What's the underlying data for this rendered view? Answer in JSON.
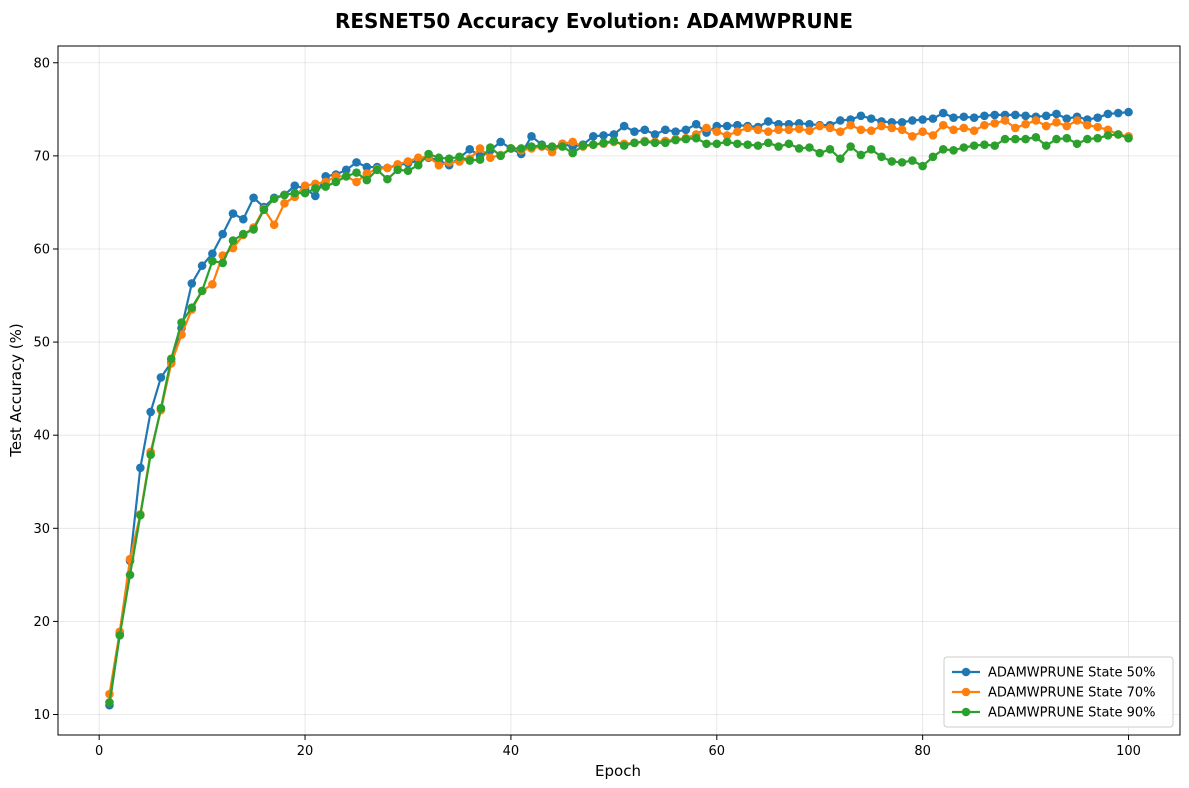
{
  "chart_data": {
    "type": "line",
    "title": "RESNET50 Accuracy Evolution: ADAMWPRUNE",
    "xlabel": "Epoch",
    "ylabel": "Test Accuracy (%)",
    "xlim": [
      -4,
      105
    ],
    "ylim": [
      7.8,
      81.8
    ],
    "xticks": [
      0,
      20,
      40,
      60,
      80,
      100
    ],
    "yticks": [
      10,
      20,
      30,
      40,
      50,
      60,
      70,
      80
    ],
    "grid": true,
    "legend_position": "lower-right",
    "x": [
      1,
      2,
      3,
      4,
      5,
      6,
      7,
      8,
      9,
      10,
      11,
      12,
      13,
      14,
      15,
      16,
      17,
      18,
      19,
      20,
      21,
      22,
      23,
      24,
      25,
      26,
      27,
      28,
      29,
      30,
      31,
      32,
      33,
      34,
      35,
      36,
      37,
      38,
      39,
      40,
      41,
      42,
      43,
      44,
      45,
      46,
      47,
      48,
      49,
      50,
      51,
      52,
      53,
      54,
      55,
      56,
      57,
      58,
      59,
      60,
      61,
      62,
      63,
      64,
      65,
      66,
      67,
      68,
      69,
      70,
      71,
      72,
      73,
      74,
      75,
      76,
      77,
      78,
      79,
      80,
      81,
      82,
      83,
      84,
      85,
      86,
      87,
      88,
      89,
      90,
      91,
      92,
      93,
      94,
      95,
      96,
      97,
      98,
      99,
      100
    ],
    "series": [
      {
        "name": "ADAMWPRUNE State 50%",
        "color": "#1f77b4",
        "values": [
          11.0,
          18.7,
          26.5,
          36.5,
          42.5,
          46.2,
          47.8,
          51.5,
          56.3,
          58.2,
          59.5,
          61.6,
          63.8,
          63.2,
          65.5,
          64.5,
          65.5,
          65.8,
          66.8,
          66.5,
          65.7,
          67.8,
          68.0,
          68.5,
          69.3,
          68.8,
          68.8,
          68.7,
          69.0,
          69.2,
          69.5,
          69.8,
          69.5,
          69.0,
          69.8,
          70.7,
          70.0,
          70.6,
          71.5,
          70.8,
          70.2,
          72.1,
          71.2,
          70.8,
          71.3,
          71.0,
          71.2,
          72.1,
          72.2,
          72.3,
          73.2,
          72.6,
          72.8,
          72.3,
          72.8,
          72.6,
          72.8,
          73.4,
          72.5,
          73.2,
          73.2,
          73.3,
          73.2,
          73.1,
          73.7,
          73.4,
          73.4,
          73.5,
          73.4,
          73.3,
          73.3,
          73.8,
          73.9,
          74.3,
          74.0,
          73.7,
          73.6,
          73.6,
          73.8,
          73.9,
          74.0,
          74.6,
          74.1,
          74.2,
          74.1,
          74.3,
          74.4,
          74.4,
          74.4,
          74.3,
          74.2,
          74.3,
          74.5,
          74.0,
          74.2,
          73.9,
          74.1,
          74.5,
          74.6,
          74.7
        ]
      },
      {
        "name": "ADAMWPRUNE State 70%",
        "color": "#ff7f0e",
        "values": [
          12.2,
          18.9,
          26.7,
          31.5,
          38.2,
          42.7,
          47.7,
          50.8,
          53.5,
          55.5,
          56.2,
          59.3,
          60.1,
          61.5,
          62.3,
          64.3,
          62.6,
          64.9,
          65.6,
          66.8,
          67.0,
          67.2,
          67.8,
          67.8,
          67.2,
          68.1,
          68.6,
          68.7,
          69.1,
          69.4,
          69.8,
          69.9,
          69.0,
          69.3,
          69.4,
          69.7,
          70.8,
          69.8,
          70.1,
          70.8,
          70.6,
          70.8,
          71.0,
          70.4,
          71.3,
          71.5,
          71.0,
          71.2,
          71.3,
          71.5,
          71.3,
          71.4,
          71.6,
          71.5,
          71.6,
          71.8,
          71.9,
          72.3,
          73.0,
          72.6,
          72.2,
          72.6,
          73.0,
          72.8,
          72.6,
          72.8,
          72.8,
          72.9,
          72.7,
          73.2,
          73.0,
          72.6,
          73.3,
          72.8,
          72.7,
          73.2,
          73.0,
          72.8,
          72.1,
          72.6,
          72.2,
          73.3,
          72.8,
          73.0,
          72.7,
          73.3,
          73.5,
          73.8,
          73.0,
          73.4,
          73.8,
          73.2,
          73.6,
          73.2,
          73.8,
          73.3,
          73.1,
          72.8,
          72.3,
          72.1
        ]
      },
      {
        "name": "ADAMWPRUNE State 90%",
        "color": "#2ca02c",
        "values": [
          11.3,
          18.5,
          25.0,
          31.4,
          37.9,
          42.9,
          48.2,
          52.1,
          53.7,
          55.5,
          58.7,
          58.5,
          60.9,
          61.6,
          62.1,
          64.2,
          65.4,
          65.8,
          66.0,
          66.0,
          66.5,
          66.7,
          67.2,
          67.8,
          68.2,
          67.4,
          68.5,
          67.5,
          68.5,
          68.4,
          69.0,
          70.2,
          69.8,
          69.7,
          69.9,
          69.5,
          69.6,
          70.9,
          70.0,
          70.8,
          70.8,
          71.0,
          71.1,
          71.0,
          71.0,
          70.3,
          71.1,
          71.2,
          71.4,
          71.6,
          71.1,
          71.4,
          71.5,
          71.4,
          71.4,
          71.7,
          71.8,
          71.9,
          71.3,
          71.3,
          71.5,
          71.3,
          71.2,
          71.1,
          71.4,
          71.0,
          71.3,
          70.8,
          70.9,
          70.3,
          70.7,
          69.7,
          71.0,
          70.1,
          70.7,
          69.9,
          69.4,
          69.3,
          69.5,
          68.9,
          69.9,
          70.7,
          70.6,
          70.9,
          71.1,
          71.2,
          71.1,
          71.8,
          71.8,
          71.8,
          72.0,
          71.1,
          71.8,
          71.9,
          71.3,
          71.8,
          71.9,
          72.2,
          72.3,
          71.9
        ]
      }
    ]
  }
}
